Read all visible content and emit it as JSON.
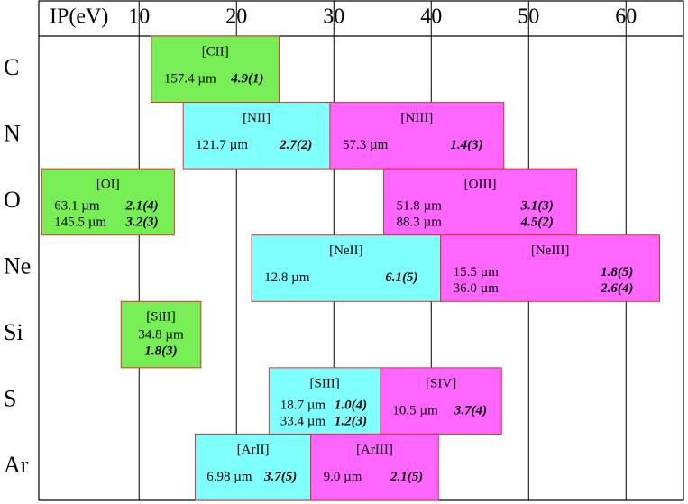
{
  "axis": {
    "label": "IP(eV)",
    "xlim": [
      -0.3,
      65.9
    ],
    "xticks": [
      10,
      20,
      30,
      40,
      50,
      60
    ]
  },
  "rows": [
    {
      "element": "C",
      "ions": [
        {
          "name": "[CII]",
          "color": "#77ee55",
          "range": [
            11.26,
            24.38
          ],
          "lines": [
            {
              "wavelength": "157.4 µm",
              "value": "4.9(1)"
            }
          ]
        }
      ]
    },
    {
      "element": "N",
      "ions": [
        {
          "name": "[NII]",
          "color": "#80ffff",
          "range": [
            14.53,
            29.6
          ],
          "lines": [
            {
              "wavelength": "121.7 µm",
              "value": "2.7(2)"
            }
          ]
        },
        {
          "name": "[NIII]",
          "color": "#ff66ff",
          "range": [
            29.6,
            47.45
          ],
          "lines": [
            {
              "wavelength": "57.3 µm",
              "value": "1.4(3)"
            }
          ]
        }
      ]
    },
    {
      "element": "O",
      "ions": [
        {
          "name": "[OI]",
          "color": "#77ee55",
          "range": [
            0,
            13.62
          ],
          "lines": [
            {
              "wavelength": "63.1 µm",
              "value": "2.1(4)"
            },
            {
              "wavelength": "145.5 µm",
              "value": "3.2(3)"
            }
          ]
        },
        {
          "name": "[OIII]",
          "color": "#ff66ff",
          "range": [
            35.12,
            54.94
          ],
          "lines": [
            {
              "wavelength": "51.8 µm",
              "value": "3.1(3)"
            },
            {
              "wavelength": "88.3 µm",
              "value": "4.5(2)"
            }
          ]
        }
      ]
    },
    {
      "element": "Ne",
      "ions": [
        {
          "name": "[NeII]",
          "color": "#80ffff",
          "range": [
            21.56,
            40.96
          ],
          "lines": [
            {
              "wavelength": "12.8 µm",
              "value": "6.1(5)"
            }
          ]
        },
        {
          "name": "[NeIII]",
          "color": "#ff66ff",
          "range": [
            40.96,
            63.45
          ],
          "lines": [
            {
              "wavelength": "15.5 µm",
              "value": "1.8(5)"
            },
            {
              "wavelength": "36.0 µm",
              "value": "2.6(4)"
            }
          ]
        }
      ]
    },
    {
      "element": "Si",
      "ions": [
        {
          "name": "[SiII]",
          "color": "#77ee55",
          "range": [
            8.15,
            16.35
          ],
          "lines": [
            {
              "wavelength": "34.8 µm",
              "value": "1.8(3)"
            }
          ]
        }
      ]
    },
    {
      "element": "S",
      "ions": [
        {
          "name": "[SIII]",
          "color": "#80ffff",
          "range": [
            23.34,
            34.79
          ],
          "lines": [
            {
              "wavelength": "18.7 µm",
              "value": "1.0(4)"
            },
            {
              "wavelength": "33.4 µm",
              "value": "1.2(3)"
            }
          ]
        },
        {
          "name": "[SIV]",
          "color": "#ff66ff",
          "range": [
            34.79,
            47.22
          ],
          "lines": [
            {
              "wavelength": "10.5 µm",
              "value": "3.7(4)"
            }
          ]
        }
      ]
    },
    {
      "element": "Ar",
      "ions": [
        {
          "name": "[ArII]",
          "color": "#80ffff",
          "range": [
            15.76,
            27.63
          ],
          "lines": [
            {
              "wavelength": "6.98 µm",
              "value": "3.7(5)"
            }
          ]
        },
        {
          "name": "[ArIII]",
          "color": "#ff66ff",
          "range": [
            27.63,
            40.74
          ],
          "lines": [
            {
              "wavelength": "9.0 µm",
              "value": "2.1(5)"
            }
          ]
        }
      ]
    }
  ]
}
